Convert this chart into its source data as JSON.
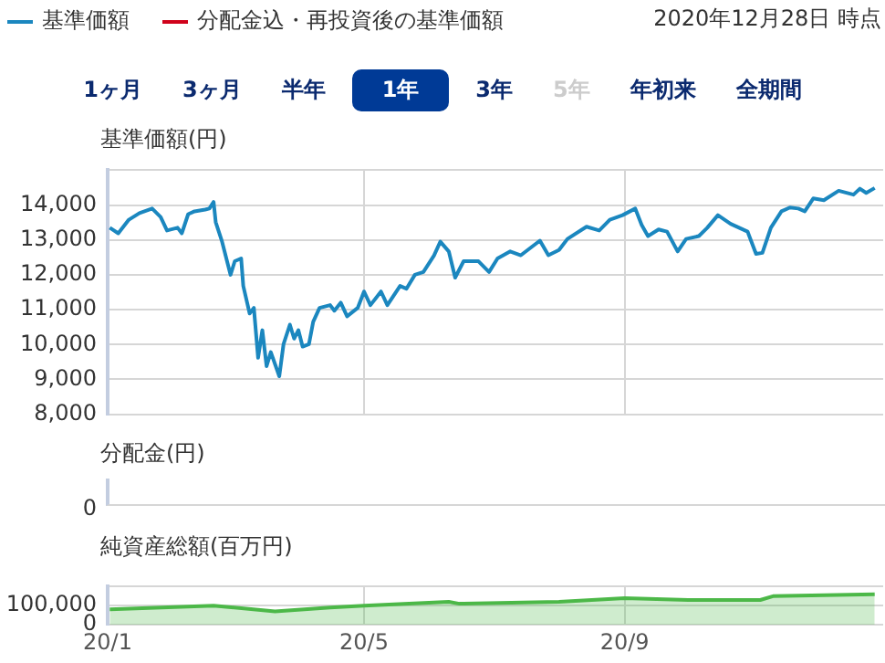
{
  "chart_data": [
    {
      "type": "line",
      "subtitle": "2020年12月28日 時点",
      "ylabel": "基準価額(円)",
      "legend": "top left",
      "grid": true,
      "tick_labels": "y",
      "marker": "none",
      "annotations": [
        "1ヶ月",
        "3ヶ月",
        "半年",
        "1年",
        "3年",
        "5年",
        "年初来",
        "全期間"
      ],
      "xlim": [
        "2020-01-01",
        "2021-01-01"
      ],
      "xticks": [
        {
          "value": "2020-01-01",
          "label": null
        },
        {
          "value": "2020-05-01",
          "label": null
        },
        {
          "value": "2020-09-01",
          "label": null
        }
      ],
      "ylim": [
        8000,
        15000
      ],
      "yticks": [
        {
          "value": 8000,
          "label": "8,000"
        },
        {
          "value": 9000,
          "label": "9,000"
        },
        {
          "value": 10000,
          "label": "10,000"
        },
        {
          "value": 11000,
          "label": "11,000"
        },
        {
          "value": 12000,
          "label": "12,000"
        },
        {
          "value": 13000,
          "label": "13,000"
        },
        {
          "value": 14000,
          "label": "14,000"
        },
        {
          "value": 15000,
          "label": null
        }
      ],
      "series": [
        {
          "name": "基準価額",
          "color": "#1b87bf",
          "x": [
            "2020-01-02",
            "2020-01-06",
            "2020-01-11",
            "2020-01-16",
            "2020-01-22",
            "2020-01-26",
            "2020-01-29",
            "2020-02-03",
            "2020-02-05",
            "2020-02-08",
            "2020-02-11",
            "2020-02-16",
            "2020-02-18",
            "2020-02-20",
            "2020-02-21",
            "2020-02-24",
            "2020-02-28",
            "2020-03-01",
            "2020-03-04",
            "2020-03-05",
            "2020-03-08",
            "2020-03-10",
            "2020-03-12",
            "2020-03-14",
            "2020-03-16",
            "2020-03-18",
            "2020-03-22",
            "2020-03-24",
            "2020-03-27",
            "2020-03-29",
            "2020-03-31",
            "2020-04-02",
            "2020-04-05",
            "2020-04-07",
            "2020-04-10",
            "2020-04-15",
            "2020-04-17",
            "2020-04-20",
            "2020-04-23",
            "2020-04-28",
            "2020-05-01",
            "2020-05-04",
            "2020-05-09",
            "2020-05-12",
            "2020-05-18",
            "2020-05-21",
            "2020-05-25",
            "2020-05-29",
            "2020-06-03",
            "2020-06-06",
            "2020-06-10",
            "2020-06-13",
            "2020-06-17",
            "2020-06-24",
            "2020-06-29",
            "2020-07-03",
            "2020-07-09",
            "2020-07-14",
            "2020-07-23",
            "2020-07-27",
            "2020-08-01",
            "2020-08-05",
            "2020-08-14",
            "2020-08-20",
            "2020-08-25",
            "2020-08-31",
            "2020-09-06",
            "2020-09-09",
            "2020-09-12",
            "2020-09-17",
            "2020-09-21",
            "2020-09-26",
            "2020-09-30",
            "2020-10-06",
            "2020-10-10",
            "2020-10-15",
            "2020-10-21",
            "2020-10-29",
            "2020-11-02",
            "2020-11-05",
            "2020-11-09",
            "2020-11-14",
            "2020-11-18",
            "2020-11-22",
            "2020-11-25",
            "2020-11-29",
            "2020-12-04",
            "2020-12-11",
            "2020-12-18",
            "2020-12-21",
            "2020-12-24",
            "2020-12-28"
          ],
          "values": [
            13350,
            13190,
            13580,
            13770,
            13900,
            13660,
            13270,
            13350,
            13190,
            13740,
            13820,
            13870,
            13900,
            14090,
            13510,
            12950,
            12000,
            12390,
            12470,
            11680,
            10890,
            11050,
            9620,
            10410,
            9380,
            9780,
            9090,
            10010,
            10570,
            10170,
            10410,
            9940,
            10010,
            10650,
            11050,
            11130,
            10970,
            11200,
            10810,
            11050,
            11520,
            11130,
            11520,
            11130,
            11680,
            11600,
            12000,
            12080,
            12550,
            12950,
            12670,
            11920,
            12390,
            12390,
            12080,
            12470,
            12670,
            12560,
            12980,
            12560,
            12710,
            13030,
            13380,
            13270,
            13580,
            13710,
            13900,
            13430,
            13110,
            13300,
            13240,
            12670,
            13030,
            13110,
            13350,
            13710,
            13460,
            13240,
            12600,
            12630,
            13350,
            13820,
            13930,
            13900,
            13820,
            14190,
            14140,
            14410,
            14300,
            14470,
            14350,
            14490
          ]
        },
        {
          "name": "分配金込・再投資後の基準価額",
          "color": "#d0021b"
        }
      ]
    },
    {
      "type": "other",
      "ylabel": "分配金(円)",
      "annotations": [
        "0"
      ]
    },
    {
      "type": "area",
      "ylabel": "純資産総額(百万円)",
      "grid": true,
      "color": "#4cb848",
      "xlim": [
        "2020-01-01",
        "2021-01-01"
      ],
      "xticks": [
        {
          "value": "2020-01-01",
          "label": "20/1"
        },
        {
          "value": "2020-05-01",
          "label": "20/5"
        },
        {
          "value": "2020-09-01",
          "label": "20/9"
        }
      ],
      "ylim": [
        0,
        200000
      ],
      "yticks": [
        0,
        {
          "value": 100000,
          "label": "100,000"
        },
        {
          "value": 200000,
          "label": null
        }
      ],
      "x": [
        "2020-01-02",
        "2020-02-20",
        "2020-03-20",
        "2020-04-15",
        "2020-05-01",
        "2020-06-10",
        "2020-06-15",
        "2020-08-01",
        "2020-09-01",
        "2020-10-01",
        "2020-11-04",
        "2020-11-10",
        "2020-12-28"
      ],
      "values": [
        80000,
        100000,
        70000,
        90000,
        100000,
        120000,
        110000,
        120000,
        140000,
        130000,
        130000,
        150000,
        160000
      ]
    }
  ]
}
